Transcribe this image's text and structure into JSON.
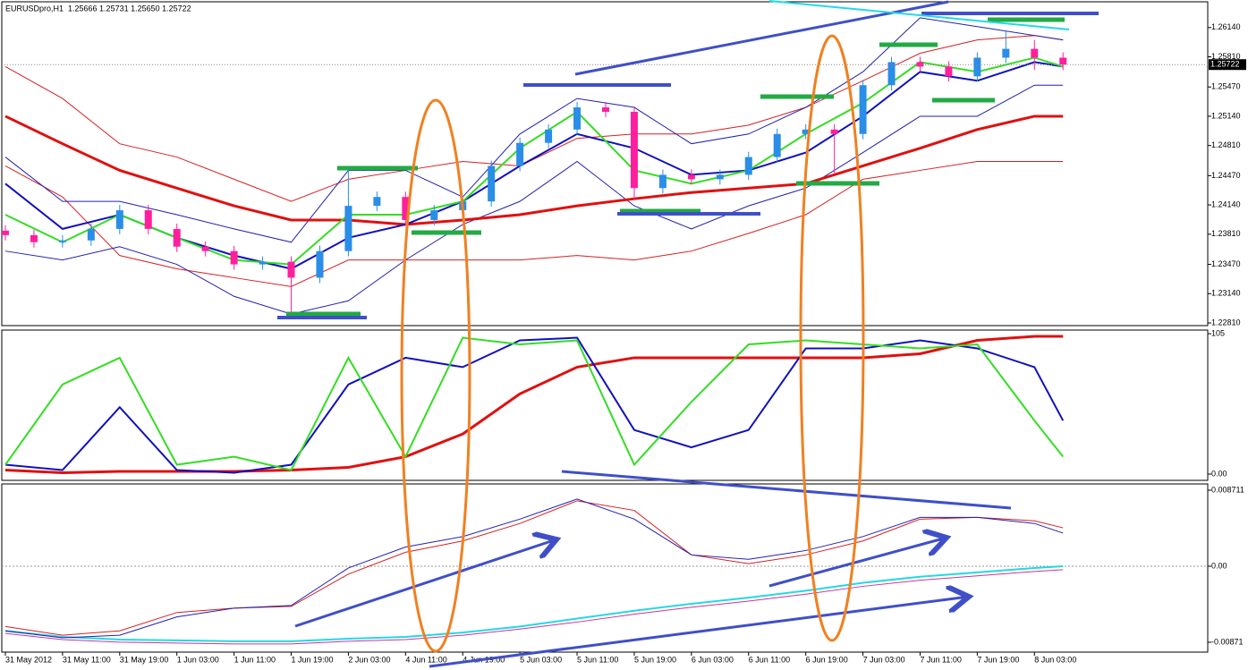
{
  "chart_data": [
    {
      "type": "candlestick",
      "title": "EURUSDpro,H1  1.25666 1.25731 1.25650 1.25722",
      "xlim": [
        -0.5,
        168.25
      ],
      "ylim": [
        1.2278,
        1.2643
      ],
      "yticks": [
        {
          "value": 1.2614,
          "label": "1.26140"
        },
        {
          "value": 1.2581,
          "label": "1.25810"
        },
        {
          "value": 1.2547,
          "label": "1.25470"
        },
        {
          "value": 1.2514,
          "label": "1.25140"
        },
        {
          "value": 1.2481,
          "label": "1.24810"
        },
        {
          "value": 1.2447,
          "label": "1.24470"
        },
        {
          "value": 1.2414,
          "label": "1.24140"
        },
        {
          "value": 1.2381,
          "label": "1.23810"
        },
        {
          "value": 1.2347,
          "label": "1.23470"
        },
        {
          "value": 1.2314,
          "label": "1.23140"
        },
        {
          "value": 1.2281,
          "label": "1.22810"
        }
      ],
      "price_line": {
        "value": 1.25722,
        "label": "1.25722"
      },
      "candles": {
        "up_color": "#2a8de8",
        "down_color": "#ff1f9e",
        "x": [
          0,
          4,
          8,
          12,
          16,
          20,
          24,
          28,
          32,
          36,
          40,
          44,
          48,
          52,
          56,
          60,
          64,
          68,
          72,
          76,
          80,
          84,
          88,
          92,
          96,
          100,
          104,
          108,
          112,
          116,
          120,
          124,
          128,
          132,
          136,
          140,
          144,
          148
        ],
        "open": [
          1.2385,
          1.238,
          1.2372,
          1.2374,
          1.2387,
          1.2408,
          1.2387,
          1.2367,
          1.2362,
          1.2347,
          1.235,
          1.2332,
          1.2362,
          1.2413,
          1.2423,
          1.2397,
          1.2408,
          1.2418,
          1.2458,
          1.2484,
          1.2499,
          1.2524,
          1.2519,
          1.2433,
          1.2448,
          1.2443,
          1.2448,
          1.2468,
          1.2494,
          1.2499,
          1.2494,
          1.2549,
          1.2575,
          1.257,
          1.2559,
          1.258,
          1.259,
          1.258
        ],
        "high": [
          1.2391,
          1.2386,
          1.238,
          1.2393,
          1.2414,
          1.2414,
          1.2393,
          1.2373,
          1.2368,
          1.2356,
          1.2356,
          1.2368,
          1.2453,
          1.2429,
          1.2429,
          1.2414,
          1.2424,
          1.2464,
          1.249,
          1.2505,
          1.253,
          1.253,
          1.2525,
          1.2454,
          1.2454,
          1.2454,
          1.2474,
          1.25,
          1.2505,
          1.2505,
          1.2555,
          1.2581,
          1.2581,
          1.2576,
          1.2586,
          1.261,
          1.26,
          1.2586
        ],
        "low": [
          1.2374,
          1.2366,
          1.2366,
          1.2368,
          1.2381,
          1.2381,
          1.2361,
          1.2356,
          1.2341,
          1.2341,
          1.2292,
          1.2326,
          1.2356,
          1.2407,
          1.2391,
          1.2391,
          1.2402,
          1.2412,
          1.2452,
          1.2478,
          1.2493,
          1.2513,
          1.242,
          1.2427,
          1.2437,
          1.2437,
          1.2442,
          1.2462,
          1.2488,
          1.245,
          1.2488,
          1.2543,
          1.2564,
          1.2553,
          1.2553,
          1.2574,
          1.2566,
          1.2566
        ],
        "close": [
          1.238,
          1.2372,
          1.2374,
          1.2387,
          1.2408,
          1.2387,
          1.2367,
          1.2362,
          1.2347,
          1.235,
          1.2332,
          1.2362,
          1.2413,
          1.2423,
          1.2397,
          1.2408,
          1.2418,
          1.2458,
          1.2484,
          1.2499,
          1.2524,
          1.2519,
          1.2433,
          1.2448,
          1.2443,
          1.2448,
          1.2468,
          1.2494,
          1.2499,
          1.2494,
          1.2549,
          1.2575,
          1.257,
          1.2559,
          1.258,
          1.259,
          1.258,
          1.25722
        ]
      },
      "x": [
        0,
        8,
        16,
        24,
        32,
        40,
        48,
        56,
        64,
        72,
        80,
        88,
        96,
        104,
        112,
        120,
        128,
        136,
        144,
        148
      ],
      "series": [
        {
          "color": "#d42020",
          "width": 1,
          "values": [
            1.257,
            1.2534,
            1.2483,
            1.2468,
            1.2443,
            1.2418,
            1.2443,
            1.2453,
            1.2463,
            1.2458,
            1.2489,
            1.2494,
            1.2494,
            1.2504,
            1.2524,
            1.2554,
            1.2585,
            1.26,
            1.2605,
            1.26
          ]
        },
        {
          "color": "#d42020",
          "width": 1,
          "values": [
            1.2458,
            1.2423,
            1.2357,
            1.2342,
            1.2332,
            1.2322,
            1.2352,
            1.2352,
            1.2352,
            1.2352,
            1.2357,
            1.2352,
            1.2362,
            1.2382,
            1.2403,
            1.2443,
            1.2453,
            1.2463,
            1.2463,
            1.2463
          ]
        },
        {
          "color": "#2020b0",
          "width": 1,
          "values": [
            1.2468,
            1.2418,
            1.2418,
            1.2403,
            1.2387,
            1.2372,
            1.2453,
            1.2453,
            1.2423,
            1.2494,
            1.2534,
            1.2524,
            1.2483,
            1.2494,
            1.2524,
            1.2564,
            1.2625,
            1.2615,
            1.2605,
            1.26
          ]
        },
        {
          "color": "#2020b0",
          "width": 1,
          "values": [
            1.2362,
            1.2352,
            1.2367,
            1.2347,
            1.2311,
            1.2291,
            1.2306,
            1.2352,
            1.2392,
            1.2418,
            1.2463,
            1.2413,
            1.2387,
            1.2413,
            1.2433,
            1.2473,
            1.2514,
            1.2514,
            1.2549,
            1.2549
          ]
        },
        {
          "color": "#e01010",
          "width": 3,
          "values": [
            1.2514,
            1.2483,
            1.2453,
            1.2433,
            1.2413,
            1.2397,
            1.2397,
            1.2392,
            1.2397,
            1.2403,
            1.2413,
            1.2421,
            1.2428,
            1.2433,
            1.2438,
            1.2458,
            1.2478,
            1.2499,
            1.2514,
            1.2514
          ]
        },
        {
          "color": "#1010c0",
          "width": 2,
          "values": [
            1.2438,
            1.2387,
            1.2403,
            1.2377,
            1.2357,
            1.2342,
            1.2377,
            1.2392,
            1.2418,
            1.2458,
            1.2494,
            1.2478,
            1.2448,
            1.2453,
            1.2473,
            1.2514,
            1.2564,
            1.2554,
            1.2575,
            1.257
          ]
        },
        {
          "color": "#33dd22",
          "width": 2,
          "values": [
            1.2403,
            1.2372,
            1.2403,
            1.2377,
            1.2352,
            1.2347,
            1.2403,
            1.2403,
            1.2418,
            1.2478,
            1.2519,
            1.2453,
            1.2438,
            1.2453,
            1.2494,
            1.2529,
            1.2575,
            1.2564,
            1.258,
            1.257
          ]
        }
      ]
    },
    {
      "type": "line",
      "xlim": [
        -0.5,
        168.25
      ],
      "ylim": [
        -4.7,
        107.7
      ],
      "yticks": [
        105,
        {
          "value": 0,
          "label": "0.00"
        }
      ],
      "x": [
        0,
        8,
        16,
        24,
        32,
        40,
        48,
        56,
        64,
        72,
        80,
        88,
        96,
        104,
        112,
        120,
        128,
        136,
        144,
        148
      ],
      "series": [
        {
          "color": "#e01010",
          "width": 3,
          "values": [
            3,
            1,
            2,
            2,
            2,
            3,
            5,
            13,
            30,
            60,
            80,
            87,
            87,
            87,
            87,
            87,
            90,
            100,
            103,
            103
          ]
        },
        {
          "color": "#1010c0",
          "width": 2,
          "values": [
            7,
            3,
            50,
            3,
            1,
            7,
            67,
            87,
            80,
            100,
            102,
            33,
            20,
            33,
            94,
            94,
            100,
            94,
            80,
            40
          ]
        },
        {
          "color": "#33dd22",
          "width": 2,
          "values": [
            7,
            67,
            87,
            7,
            13,
            3,
            87,
            13,
            102,
            97,
            100,
            7,
            54,
            97,
            100,
            97,
            94,
            97,
            40,
            13
          ]
        }
      ]
    },
    {
      "type": "line",
      "xlim": [
        -0.5,
        168.25
      ],
      "ylim": [
        -0.00984,
        0.00943
      ],
      "yticks": [
        0.008711,
        {
          "value": 0,
          "label": "0.00"
        },
        -0.00871
      ],
      "zero_line": true,
      "xticks": [
        {
          "value": 0,
          "label": "31 May 2012"
        },
        {
          "value": 8,
          "label": "31 May 11:00"
        },
        {
          "value": 16,
          "label": "31 May 19:00"
        },
        {
          "value": 24,
          "label": "1 Jun 03:00"
        },
        {
          "value": 32,
          "label": "1 Jun 11:00"
        },
        {
          "value": 40,
          "label": "1 Jun 19:00"
        },
        {
          "value": 48,
          "label": "2 Jun 03:00"
        },
        {
          "value": 56,
          "label": "4 Jun 11:00"
        },
        {
          "value": 64,
          "label": "4 Jun 19:00"
        },
        {
          "value": 72,
          "label": "5 Jun 03:00"
        },
        {
          "value": 80,
          "label": "5 Jun 11:00"
        },
        {
          "value": 88,
          "label": "5 Jun 19:00"
        },
        {
          "value": 96,
          "label": "6 Jun 03:00"
        },
        {
          "value": 104,
          "label": "6 Jun 11:00"
        },
        {
          "value": 112,
          "label": "6 Jun 19:00"
        },
        {
          "value": 120,
          "label": "7 Jun 03:00"
        },
        {
          "value": 128,
          "label": "7 Jun 11:00"
        },
        {
          "value": 136,
          "label": "7 Jun 19:00"
        },
        {
          "value": 144,
          "label": "8 Jun 03:00"
        }
      ],
      "x": [
        0,
        8,
        16,
        24,
        32,
        40,
        48,
        56,
        64,
        72,
        80,
        88,
        96,
        104,
        112,
        120,
        128,
        136,
        144,
        148
      ],
      "series": [
        {
          "color": "#cc3399",
          "width": 1,
          "values": [
            -0.0077,
            -0.0084,
            -0.0087,
            -0.0088,
            -0.0089,
            -0.0089,
            -0.0086,
            -0.0084,
            -0.0079,
            -0.0072,
            -0.0064,
            -0.0055,
            -0.0047,
            -0.004,
            -0.0032,
            -0.0023,
            -0.0016,
            -0.0011,
            -0.0006,
            -0.0004
          ]
        },
        {
          "color": "#22d8e8",
          "width": 2,
          "values": [
            -0.0074,
            -0.0081,
            -0.0084,
            -0.0085,
            -0.0086,
            -0.0086,
            -0.0083,
            -0.0081,
            -0.0076,
            -0.0069,
            -0.006,
            -0.0051,
            -0.0043,
            -0.0036,
            -0.0028,
            -0.0019,
            -0.0012,
            -0.0007,
            -0.0002,
            0
          ]
        },
        {
          "color": "#d42020",
          "width": 1,
          "values": [
            -0.0069,
            -0.0079,
            -0.0074,
            -0.0053,
            -0.0048,
            -0.0046,
            -0.0009,
            0.0016,
            0.0029,
            0.0049,
            0.0075,
            0.0064,
            0.0013,
            0.0003,
            0.0013,
            0.0029,
            0.0054,
            0.0056,
            0.0052,
            0.0044
          ]
        },
        {
          "color": "#2020b0",
          "width": 1,
          "values": [
            -0.0074,
            -0.0082,
            -0.0079,
            -0.0058,
            -0.0048,
            -0.0045,
            -0.0002,
            0.0022,
            0.0034,
            0.0054,
            0.0077,
            0.0054,
            0.0013,
            0.0008,
            0.0018,
            0.0034,
            0.0056,
            0.0056,
            0.0049,
            0.0038
          ]
        }
      ]
    }
  ]
}
